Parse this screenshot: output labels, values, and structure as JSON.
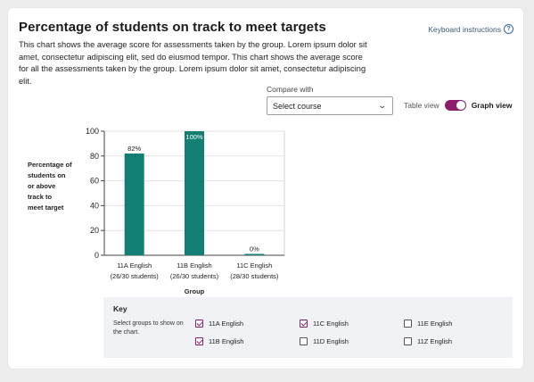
{
  "header": {
    "title": "Percentage of students on track to meet targets",
    "description": "This chart shows the average score for assessments taken by the group. Lorem ipsum dolor sit amet, consectetur adipiscing elit, sed do eiusmod tempor. This chart shows the average score for all the assessments taken by the group. Lorem ipsum dolor sit amet, consectetur adipiscing elit.",
    "keyboard_link": "Keyboard instructions",
    "help_icon": "?"
  },
  "controls": {
    "compare_label": "Compare with",
    "select_value": "Select course",
    "chevron": "⌄",
    "table_view": "Table view",
    "graph_view": "Graph view"
  },
  "chart_data": {
    "type": "bar",
    "categories": [
      "11A English",
      "11B English",
      "11C English"
    ],
    "sublabels": [
      "(26/30 students)",
      "(26/30 students)",
      "(28/30 students)"
    ],
    "values": [
      82,
      100,
      0
    ],
    "data_labels": [
      "82%",
      "100%",
      "0%"
    ],
    "ylabel": "Percentage of students on or above track to meet target",
    "ylabel_lines": [
      "Percentage of",
      "students on",
      "or above",
      "track to",
      "meet target"
    ],
    "xlabel": "Group",
    "ylim": [
      0,
      100
    ],
    "yticks": [
      0,
      20,
      40,
      60,
      80,
      100
    ],
    "grid": true,
    "bar_color": "#137f74"
  },
  "key": {
    "title": "Key",
    "description": "Select groups to show on the chart.",
    "items": [
      {
        "label": "11A English",
        "checked": true
      },
      {
        "label": "11B English",
        "checked": true
      },
      {
        "label": "11C English",
        "checked": true
      },
      {
        "label": "11D English",
        "checked": false
      },
      {
        "label": "11E English",
        "checked": false
      },
      {
        "label": "11Z English",
        "checked": false
      }
    ]
  },
  "colors": {
    "accent": "#8c1d6b",
    "bar": "#137f74"
  }
}
